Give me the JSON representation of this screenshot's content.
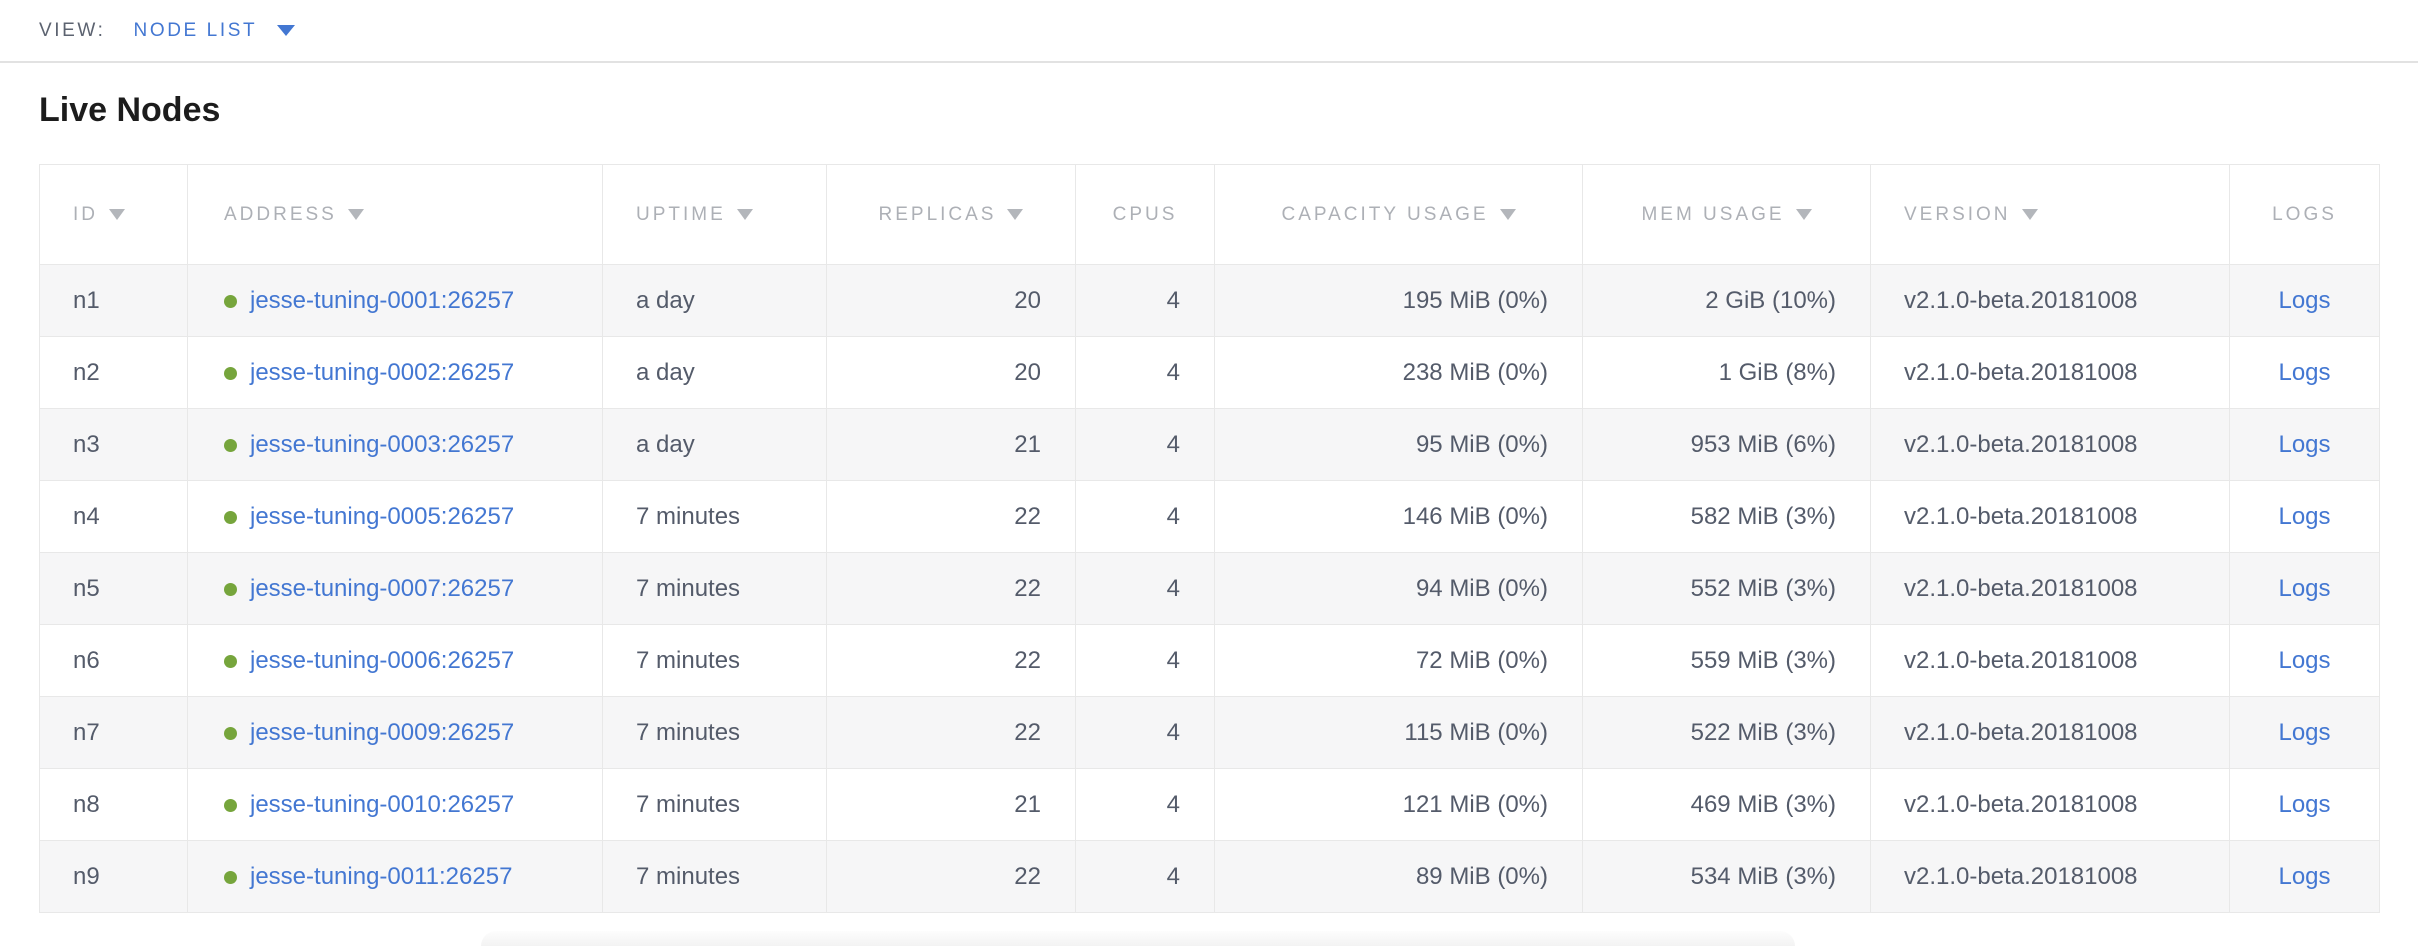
{
  "view_bar": {
    "label": "VIEW:",
    "selected_view": "NODE LIST"
  },
  "heading": "Live Nodes",
  "table": {
    "columns": [
      {
        "key": "id",
        "label": "ID",
        "sorted": true
      },
      {
        "key": "address",
        "label": "ADDRESS",
        "sorted": true
      },
      {
        "key": "uptime",
        "label": "UPTIME",
        "sorted": true
      },
      {
        "key": "replicas",
        "label": "REPLICAS",
        "sorted": true
      },
      {
        "key": "cpus",
        "label": "CPUS",
        "sorted": false
      },
      {
        "key": "capacity",
        "label": "CAPACITY USAGE",
        "sorted": true
      },
      {
        "key": "mem",
        "label": "MEM USAGE",
        "sorted": true
      },
      {
        "key": "version",
        "label": "VERSION",
        "sorted": true
      },
      {
        "key": "logs",
        "label": "LOGS",
        "sorted": false
      }
    ],
    "rows": [
      {
        "id": "n1",
        "status": "live",
        "address": "jesse-tuning-0001:26257",
        "uptime": "a day",
        "replicas": "20",
        "cpus": "4",
        "capacity": "195 MiB (0%)",
        "mem": "2 GiB (10%)",
        "version": "v2.1.0-beta.20181008",
        "logs_label": "Logs"
      },
      {
        "id": "n2",
        "status": "live",
        "address": "jesse-tuning-0002:26257",
        "uptime": "a day",
        "replicas": "20",
        "cpus": "4",
        "capacity": "238 MiB (0%)",
        "mem": "1 GiB (8%)",
        "version": "v2.1.0-beta.20181008",
        "logs_label": "Logs"
      },
      {
        "id": "n3",
        "status": "live",
        "address": "jesse-tuning-0003:26257",
        "uptime": "a day",
        "replicas": "21",
        "cpus": "4",
        "capacity": "95 MiB (0%)",
        "mem": "953 MiB (6%)",
        "version": "v2.1.0-beta.20181008",
        "logs_label": "Logs"
      },
      {
        "id": "n4",
        "status": "live",
        "address": "jesse-tuning-0005:26257",
        "uptime": "7 minutes",
        "replicas": "22",
        "cpus": "4",
        "capacity": "146 MiB (0%)",
        "mem": "582 MiB (3%)",
        "version": "v2.1.0-beta.20181008",
        "logs_label": "Logs"
      },
      {
        "id": "n5",
        "status": "live",
        "address": "jesse-tuning-0007:26257",
        "uptime": "7 minutes",
        "replicas": "22",
        "cpus": "4",
        "capacity": "94 MiB (0%)",
        "mem": "552 MiB (3%)",
        "version": "v2.1.0-beta.20181008",
        "logs_label": "Logs"
      },
      {
        "id": "n6",
        "status": "live",
        "address": "jesse-tuning-0006:26257",
        "uptime": "7 minutes",
        "replicas": "22",
        "cpus": "4",
        "capacity": "72 MiB (0%)",
        "mem": "559 MiB (3%)",
        "version": "v2.1.0-beta.20181008",
        "logs_label": "Logs"
      },
      {
        "id": "n7",
        "status": "live",
        "address": "jesse-tuning-0009:26257",
        "uptime": "7 minutes",
        "replicas": "22",
        "cpus": "4",
        "capacity": "115 MiB (0%)",
        "mem": "522 MiB (3%)",
        "version": "v2.1.0-beta.20181008",
        "logs_label": "Logs"
      },
      {
        "id": "n8",
        "status": "live",
        "address": "jesse-tuning-0010:26257",
        "uptime": "7 minutes",
        "replicas": "21",
        "cpus": "4",
        "capacity": "121 MiB (0%)",
        "mem": "469 MiB (3%)",
        "version": "v2.1.0-beta.20181008",
        "logs_label": "Logs"
      },
      {
        "id": "n9",
        "status": "live",
        "address": "jesse-tuning-0011:26257",
        "uptime": "7 minutes",
        "replicas": "22",
        "cpus": "4",
        "capacity": "89 MiB (0%)",
        "mem": "534 MiB (3%)",
        "version": "v2.1.0-beta.20181008",
        "logs_label": "Logs"
      }
    ]
  },
  "colors": {
    "link_blue": "#4377d2",
    "live_dot_green": "#76a53c",
    "header_gray": "#adb0b6",
    "body_text": "#545b6a",
    "stripe": "#f6f6f7"
  }
}
